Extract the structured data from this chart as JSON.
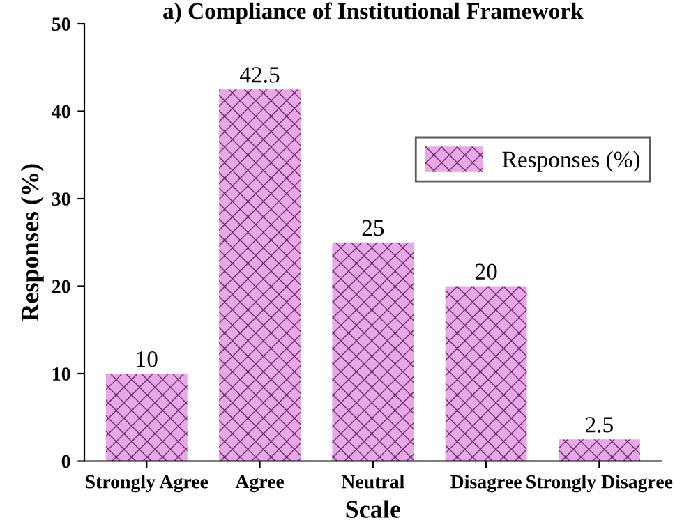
{
  "chart_data": {
    "type": "bar",
    "title": "a) Compliance of Institutional Framework",
    "xlabel": "Scale",
    "ylabel": "Responses (%)",
    "categories": [
      "Strongly Agree",
      "Agree",
      "Neutral",
      "Disagree",
      "Strongly Disagree"
    ],
    "series": [
      {
        "name": "Responses (%)",
        "color": "#e8a8e8",
        "values": [
          10,
          42.5,
          25,
          20,
          2.5
        ]
      }
    ],
    "ylim": [
      0,
      50
    ],
    "yticks": [
      0,
      10,
      20,
      30,
      40,
      50
    ],
    "data_labels": true,
    "legend": "right",
    "grid": false
  }
}
